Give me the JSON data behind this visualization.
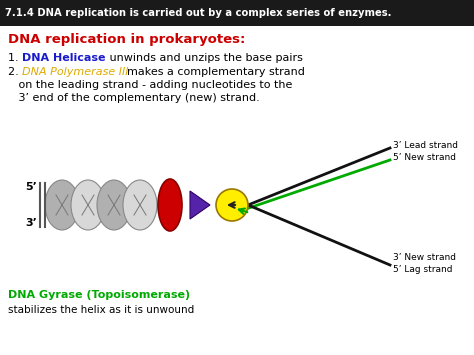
{
  "title": "7.1.4 DNA replication is carried out by a complex series of enzymes.",
  "title_bg": "#1a1a1a",
  "title_color": "#ffffff",
  "subtitle": "DNA replication in prokaryotes:",
  "subtitle_color": "#cc0000",
  "p1_num": "1. ",
  "p1_colored": "DNA Helicase",
  "p1_colored_color": "#1a1acc",
  "p1_rest": " unwinds and unzips the base pairs",
  "p2_num": "2. ",
  "p2_colored": "DNA Polymerase III",
  "p2_colored_color": "#ddaa00",
  "p2_rest": "  makes a complementary strand",
  "p2_line2": "   on the leading strand - adding nucleotides to the",
  "p2_line3": "   3’ end of the complementary (new) strand.",
  "label_5prime": "5’",
  "label_3prime": "3’",
  "label_lead": "3’ Lead strand",
  "label_new_top": "5’ New strand",
  "label_new_bot": "3’ New strand",
  "label_lag": "5’ Lag strand",
  "label_gyrase": "DNA Gyrase (Topoisomerase)",
  "label_gyrase_color": "#00aa00",
  "label_gyrase_sub": "stabilizes the helix as it is unwound",
  "bg_color": "#ffffff",
  "helicase_color": "#cc0000",
  "polymerase_color": "#ffee00",
  "triangle_color": "#5522aa",
  "strand_black": "#111111",
  "strand_green": "#00aa00",
  "helix_fill_dark": "#b0b0b0",
  "helix_fill_light": "#d8d8d8",
  "helix_edge": "#888888"
}
